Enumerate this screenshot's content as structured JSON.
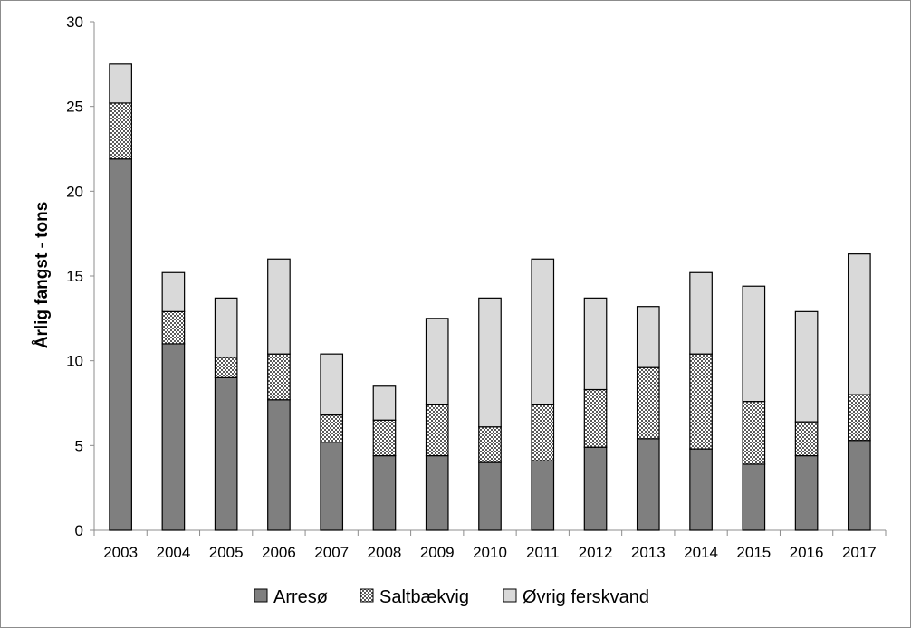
{
  "chart_data": {
    "type": "bar",
    "stacked": true,
    "title": "",
    "xlabel": "",
    "ylabel": "Årlig fangst - tons",
    "ylim": [
      0,
      30
    ],
    "yticks": [
      0,
      5,
      10,
      15,
      20,
      25,
      30
    ],
    "grid": false,
    "legend_position": "bottom",
    "categories": [
      "2003",
      "2004",
      "2005",
      "2006",
      "2007",
      "2008",
      "2009",
      "2010",
      "2011",
      "2012",
      "2013",
      "2014",
      "2015",
      "2016",
      "2017"
    ],
    "series": [
      {
        "name": "Arresø",
        "pattern": "solid",
        "color": "#7f7f7f",
        "values": [
          21.9,
          11.0,
          9.0,
          7.7,
          5.2,
          4.4,
          4.4,
          4.0,
          4.1,
          4.9,
          5.4,
          4.8,
          3.9,
          4.4,
          5.3
        ]
      },
      {
        "name": "Saltbækvig",
        "pattern": "checker",
        "color": "#b3b3b3",
        "values": [
          3.3,
          1.9,
          1.2,
          2.7,
          1.6,
          2.1,
          3.0,
          2.1,
          3.3,
          3.4,
          4.2,
          5.6,
          3.7,
          2.0,
          2.7
        ]
      },
      {
        "name": "Øvrig ferskvand",
        "pattern": "solid",
        "color": "#d9d9d9",
        "values": [
          2.3,
          2.3,
          3.5,
          5.6,
          3.6,
          2.0,
          5.1,
          7.6,
          8.6,
          5.4,
          3.6,
          4.8,
          6.8,
          6.5,
          8.3
        ]
      }
    ]
  }
}
